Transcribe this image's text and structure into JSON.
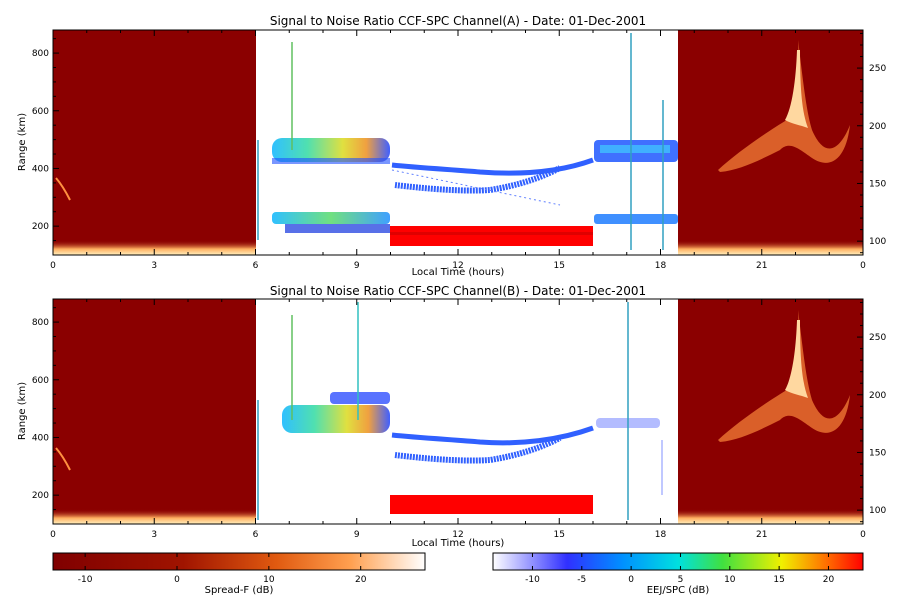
{
  "figure": {
    "panels": [
      {
        "title": "Signal to Noise Ratio CCF-SPC Channel(A) - Date: 01-Dec-2001"
      },
      {
        "title": "Signal to Noise Ratio CCF-SPC Channel(B) - Date: 01-Dec-2001"
      }
    ],
    "xlabel": "Local Time (hours)",
    "ylabel": "Range (km)",
    "x_tick_labels": [
      "0",
      "3",
      "6",
      "9",
      "12",
      "15",
      "18",
      "21",
      "0"
    ],
    "y_left_tick_labels": [
      "200",
      "400",
      "600",
      "800"
    ],
    "y_right_tick_labels": [
      "100",
      "150",
      "200",
      "250"
    ],
    "colorbars": {
      "spread_f": {
        "label": "Spread-F (dB)",
        "tick_labels": [
          "-10",
          "0",
          "10",
          "20"
        ],
        "colormap": "heat (dark red → white)"
      },
      "eej_spc": {
        "label": "EEJ/SPC (dB)",
        "tick_labels": [
          "-10",
          "-5",
          "0",
          "5",
          "10",
          "15",
          "20"
        ],
        "colormap": "rainbow (white → blue → cyan → green → yellow → red)"
      }
    }
  },
  "colors": {
    "night_background": "#8b0000",
    "spread_f_bright": "#ff9a40",
    "snr_blue": "#3050ff",
    "snr_cyan": "#30d0ff",
    "snr_green": "#60e060",
    "snr_yellow": "#f0f040",
    "snr_red": "#ff0000"
  },
  "chart_data": [
    {
      "type": "heatmap",
      "title": "Signal to Noise Ratio CCF-SPC Channel(A) - Date: 01-Dec-2001",
      "xlabel": "Local Time (hours)",
      "ylabel": "Range (km)",
      "xlim": [
        0,
        24
      ],
      "ylim": [
        100,
        880
      ],
      "y2lim": [
        88,
        283
      ],
      "grid": false,
      "features": [
        {
          "x": [
            0,
            6
          ],
          "note": "Spread-F night background",
          "value_db": -12
        },
        {
          "x": [
            18.6,
            24
          ],
          "note": "Spread-F night background with echo plume",
          "value_db": -12
        },
        {
          "x": [
            6.8,
            10
          ],
          "y": [
            410,
            500
          ],
          "value_db": 15
        },
        {
          "x": [
            6.8,
            10
          ],
          "y": [
            180,
            235
          ],
          "value_db": 10
        },
        {
          "x": [
            10,
            16
          ],
          "y": [
            140,
            200
          ],
          "value_db": 22
        },
        {
          "x": [
            10,
            16
          ],
          "y": [
            290,
            400
          ],
          "value_db": 2
        },
        {
          "x": [
            16,
            18.6
          ],
          "y": [
            420,
            495
          ],
          "value_db": 4
        },
        {
          "x": [
            16,
            18.6
          ],
          "y": [
            195,
            225
          ],
          "value_db": 4
        }
      ]
    },
    {
      "type": "heatmap",
      "title": "Signal to Noise Ratio CCF-SPC Channel(B) - Date: 01-Dec-2001",
      "xlabel": "Local Time (hours)",
      "ylabel": "Range (km)",
      "xlim": [
        0,
        24
      ],
      "ylim": [
        100,
        880
      ],
      "y2lim": [
        88,
        283
      ],
      "grid": false,
      "features": [
        {
          "x": [
            0,
            6
          ],
          "note": "Spread-F night background",
          "value_db": -12
        },
        {
          "x": [
            18.6,
            24
          ],
          "note": "Spread-F night background with echo plume",
          "value_db": -12
        },
        {
          "x": [
            6.8,
            10
          ],
          "y": [
            410,
            540
          ],
          "value_db": 12
        },
        {
          "x": [
            10,
            16
          ],
          "y": [
            140,
            190
          ],
          "value_db": 22
        },
        {
          "x": [
            10,
            16
          ],
          "y": [
            280,
            400
          ],
          "value_db": 2
        },
        {
          "x": [
            16,
            18.6
          ],
          "y": [
            425,
            460
          ],
          "value_db": -6
        }
      ]
    }
  ]
}
